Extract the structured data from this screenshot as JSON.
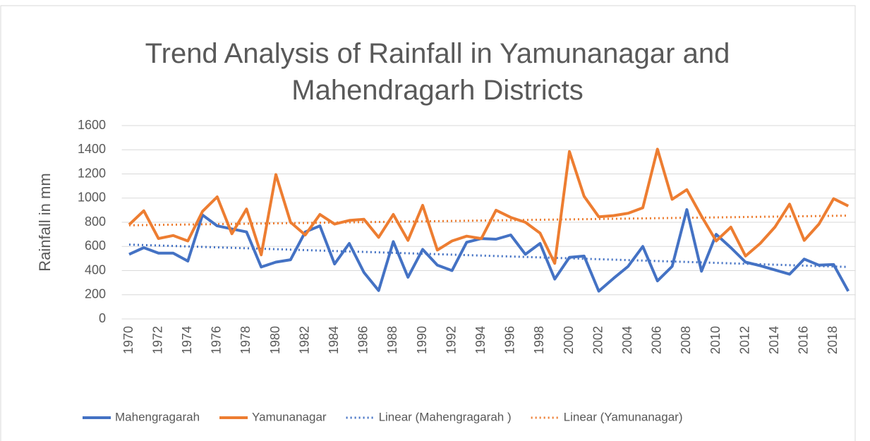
{
  "chart_data": {
    "type": "line",
    "title": "Trend Analysis of Rainfall in Yamunanagar and Mahendragarh Districts",
    "y_label": "Rainfall in mm",
    "categories": [
      "1970",
      null,
      "1972",
      null,
      "1974",
      null,
      "1976",
      null,
      "1978",
      null,
      "1980",
      null,
      "1982",
      null,
      "1984",
      null,
      "1986",
      null,
      "1988",
      null,
      "1990",
      null,
      "1992",
      null,
      "1994",
      null,
      "1996",
      null,
      "1998",
      null,
      "2000",
      null,
      "2002",
      null,
      "2004",
      null,
      "2006",
      null,
      "2008",
      null,
      "2010",
      null,
      "2012",
      null,
      "2014",
      null,
      "2016",
      null,
      "2018",
      null
    ],
    "series": [
      {
        "name": "Mahengragarah",
        "color": "#4472c4",
        "values": [
          535,
          590,
          545,
          545,
          479,
          860,
          770,
          745,
          720,
          430,
          470,
          490,
          720,
          770,
          455,
          625,
          385,
          235,
          640,
          345,
          575,
          445,
          400,
          635,
          665,
          660,
          695,
          535,
          625,
          330,
          510,
          520,
          230,
          335,
          435,
          600,
          315,
          435,
          905,
          395,
          700,
          590,
          470,
          440,
          405,
          370,
          495,
          445,
          450,
          230
        ]
      },
      {
        "name": "Yamunanagar",
        "color": "#ed7d31",
        "values": [
          780,
          895,
          665,
          690,
          645,
          890,
          1010,
          705,
          910,
          530,
          1195,
          800,
          695,
          865,
          785,
          815,
          825,
          675,
          865,
          650,
          940,
          570,
          645,
          685,
          665,
          900,
          840,
          800,
          710,
          460,
          1385,
          1015,
          845,
          855,
          875,
          920,
          1405,
          990,
          1070,
          850,
          645,
          760,
          520,
          625,
          760,
          950,
          650,
          785,
          995,
          935
        ]
      }
    ],
    "trendlines": [
      {
        "name": "Linear (Mahengragarah )",
        "color": "#4472c4",
        "start": 615,
        "end": 430
      },
      {
        "name": "Linear (Yamunanagar)",
        "color": "#ed7d31",
        "start": 775,
        "end": 855
      }
    ],
    "ylim": [
      0,
      1600
    ],
    "yticks": [
      0,
      200,
      400,
      600,
      800,
      1000,
      1200,
      1400,
      1600
    ],
    "grid": true,
    "legend": "bottom"
  }
}
